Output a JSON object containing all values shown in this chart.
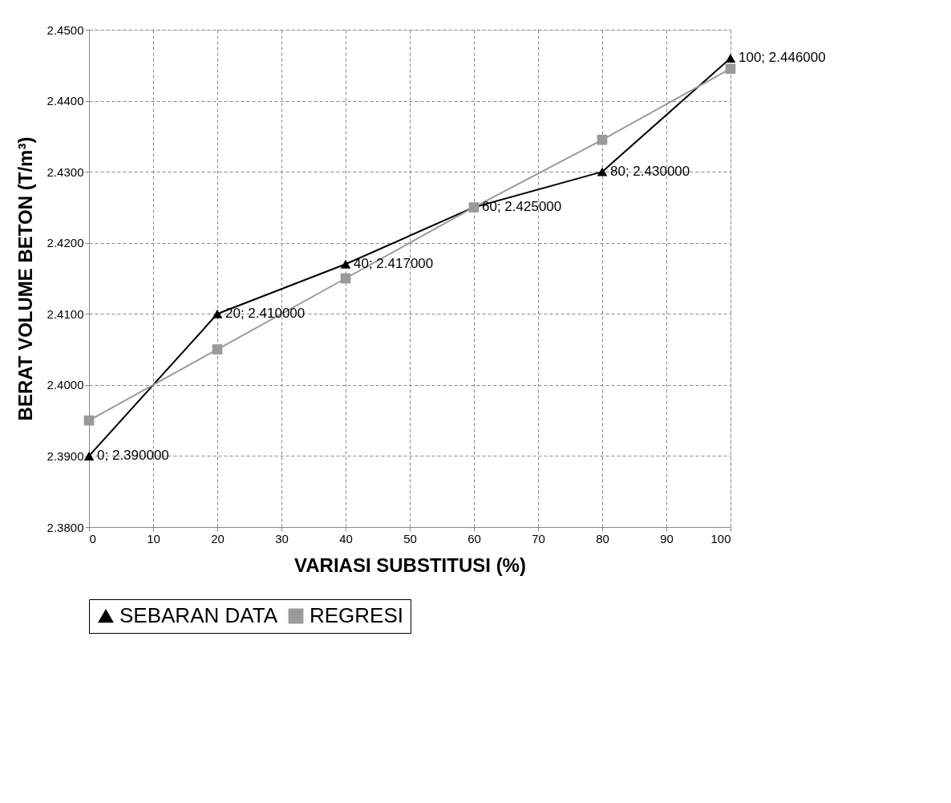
{
  "chart_data": {
    "type": "line",
    "xlabel": "VARIASI SUBSTITUSI (%)",
    "ylabel": "BERAT VOLUME BETON (T/m³)",
    "x": [
      0,
      20,
      40,
      60,
      80,
      100
    ],
    "series": [
      {
        "name": "SEBARAN DATA",
        "color": "#000000",
        "marker": "triangle",
        "values": [
          2.39,
          2.41,
          2.417,
          2.425,
          2.43,
          2.446
        ],
        "value_labels": [
          "0; 2.390000",
          "20; 2.410000",
          "40; 2.417000",
          "60; 2.425000",
          "80; 2.430000",
          "100; 2.446000"
        ]
      },
      {
        "name": "REGRESI",
        "color": "#9a9a9a",
        "marker": "square",
        "values": [
          2.395,
          2.405,
          2.415,
          2.425,
          2.4345,
          2.4445
        ]
      }
    ],
    "xlim": [
      0,
      100
    ],
    "xticks": [
      0,
      10,
      20,
      30,
      40,
      50,
      60,
      70,
      80,
      90,
      100
    ],
    "ylim": [
      2.38,
      2.45
    ],
    "yticks": [
      {
        "value": 2.38,
        "label": "2.3800"
      },
      {
        "value": 2.39,
        "label": "2.3900"
      },
      {
        "value": 2.4,
        "label": "2.4000"
      },
      {
        "value": 2.41,
        "label": "2.4100"
      },
      {
        "value": 2.42,
        "label": "2.4200"
      },
      {
        "value": 2.43,
        "label": "2.4300"
      },
      {
        "value": 2.44,
        "label": "2.4400"
      },
      {
        "value": 2.45,
        "label": "2.4500"
      }
    ],
    "grid": true,
    "legend": "bottom",
    "line_style": "solid"
  }
}
